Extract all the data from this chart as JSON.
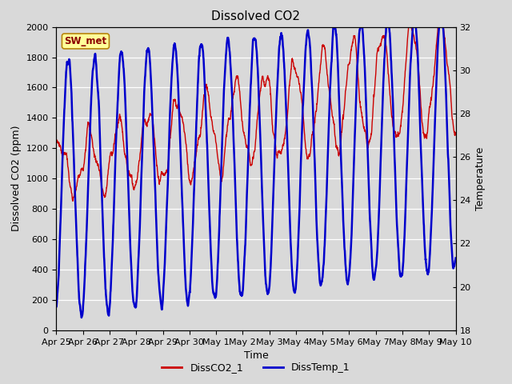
{
  "title": "Dissolved CO2",
  "xlabel": "Time",
  "ylabel_left": "Dissolved CO2 (ppm)",
  "ylabel_right": "Temperature",
  "legend_label1": "DissCO2_1",
  "legend_label2": "DissTemp_1",
  "station_label": "SW_met",
  "ylim_left": [
    0,
    2000
  ],
  "ylim_right": [
    18,
    32
  ],
  "bg_color": "#d9d9d9",
  "color1": "#cc0000",
  "color2": "#0000cc",
  "xtick_labels": [
    "Apr 25",
    "Apr 26",
    "Apr 27",
    "Apr 28",
    "Apr 29",
    "Apr 30",
    "May 1",
    "May 2",
    "May 3",
    "May 4",
    "May 5",
    "May 6",
    "May 7",
    "May 8",
    "May 9",
    "May 10"
  ],
  "grid_color": "#ffffff",
  "title_fontsize": 11,
  "label_fontsize": 9,
  "tick_fontsize": 8,
  "linewidth1": 1.0,
  "linewidth2": 1.8
}
